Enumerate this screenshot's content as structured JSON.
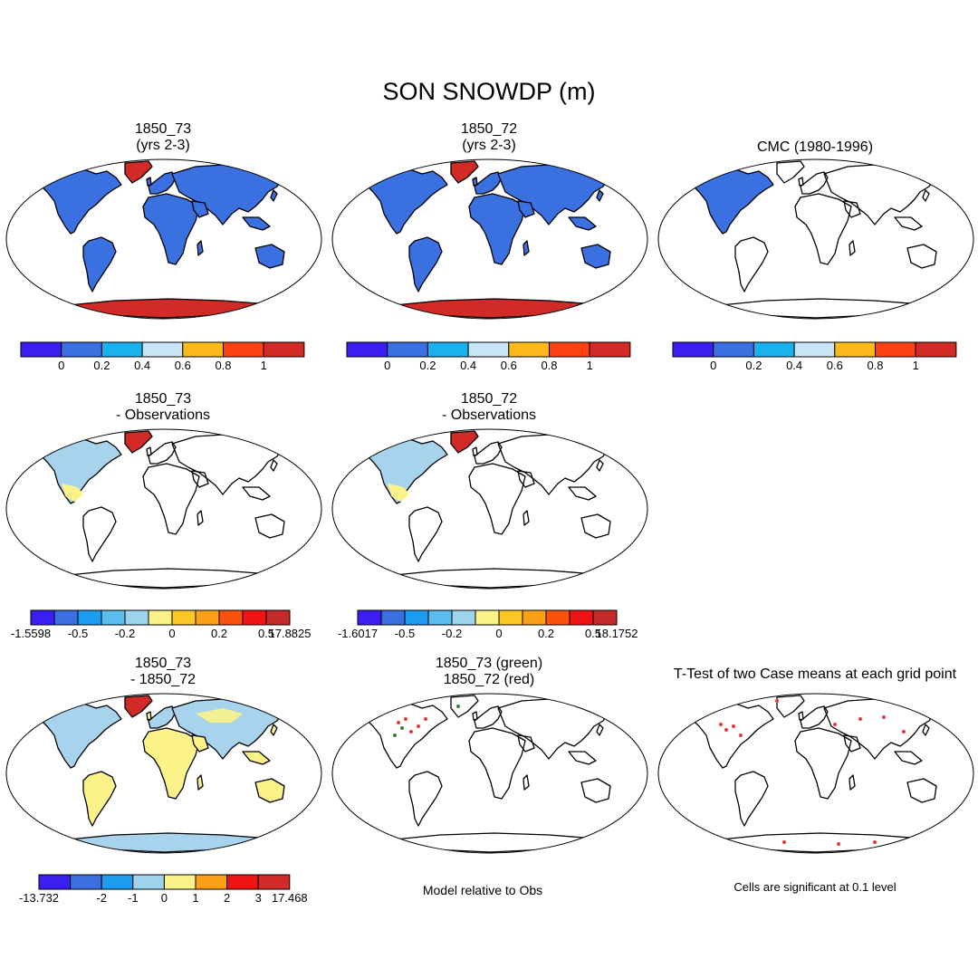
{
  "figure": {
    "title": "SON SNOWDP (m)"
  },
  "panels": [
    {
      "id": "p1",
      "title1": "1850_73",
      "title2": "(yrs 2-3)",
      "fill": "all_blue",
      "colorbar": "cb1"
    },
    {
      "id": "p2",
      "title1": "1850_72",
      "title2": "(yrs 2-3)",
      "fill": "all_blue",
      "colorbar": "cb2"
    },
    {
      "id": "p3",
      "title1": "CMC (1980-1996)",
      "title2": "",
      "fill": "na_only",
      "colorbar": "cb3"
    },
    {
      "id": "p4",
      "title1": "1850_73",
      "title2": "- Observations",
      "fill": "diff_obs",
      "colorbar": "cb4"
    },
    {
      "id": "p5",
      "title1": "1850_72",
      "title2": "- Observations",
      "fill": "diff_obs",
      "colorbar": "cb5"
    },
    {
      "id": "p6",
      "title1": "1850_73",
      "title2": "- 1850_72",
      "fill": "diff_case",
      "colorbar": "cb6"
    },
    {
      "id": "p7",
      "title1": "1850_73 (green)",
      "title2": "1850_72 (red)",
      "fill": "dots",
      "note": "Model relative to Obs"
    },
    {
      "id": "p8",
      "title1": "T-Test of two Case means at each grid point",
      "title2": "",
      "fill": "ttest",
      "note": "Cells are significant at 0.1 level"
    }
  ],
  "colorbars": {
    "abs": {
      "colors": [
        "#3a1ef2",
        "#3a70e0",
        "#19b2ee",
        "#c8e6f8",
        "#fcba1c",
        "#fc4212",
        "#d22a26"
      ],
      "labels": [
        "0",
        "0.2",
        "0.4",
        "0.6",
        "0.8",
        "1"
      ]
    },
    "diff": {
      "colors": [
        "#3a1ef2",
        "#3b6fdf",
        "#1c9cf0",
        "#5dbcee",
        "#9dd4ec",
        "#fbf28a",
        "#fdc826",
        "#fb9f14",
        "#f9520c",
        "#ef1414",
        "#c42a2a"
      ],
      "labels4": [
        "-1.5598",
        "-0.5",
        "-0.2",
        "0",
        "0.2",
        "0.5",
        "17.8825"
      ],
      "labels5": [
        "-1.6017",
        "-0.5",
        "-0.2",
        "0",
        "0.2",
        "0.5",
        "18.1752"
      ]
    },
    "case": {
      "colors": [
        "#3a1ef2",
        "#3b6fdf",
        "#1c9cf0",
        "#9dd4ec",
        "#fbf28a",
        "#fb9f14",
        "#ef1414",
        "#d22a26"
      ],
      "labels": [
        "-13.732",
        "-2",
        "-1",
        "0",
        "1",
        "2",
        "3",
        "17.468"
      ]
    }
  },
  "map_colors": {
    "snow_blue": "#3a70e0",
    "greenland_red": "#d22a26",
    "diff_light_blue": "#a8d3ec",
    "diff_yellow": "#fbf28a",
    "green_dot": "#2f8a2f",
    "red_dot": "#e83a3a"
  }
}
